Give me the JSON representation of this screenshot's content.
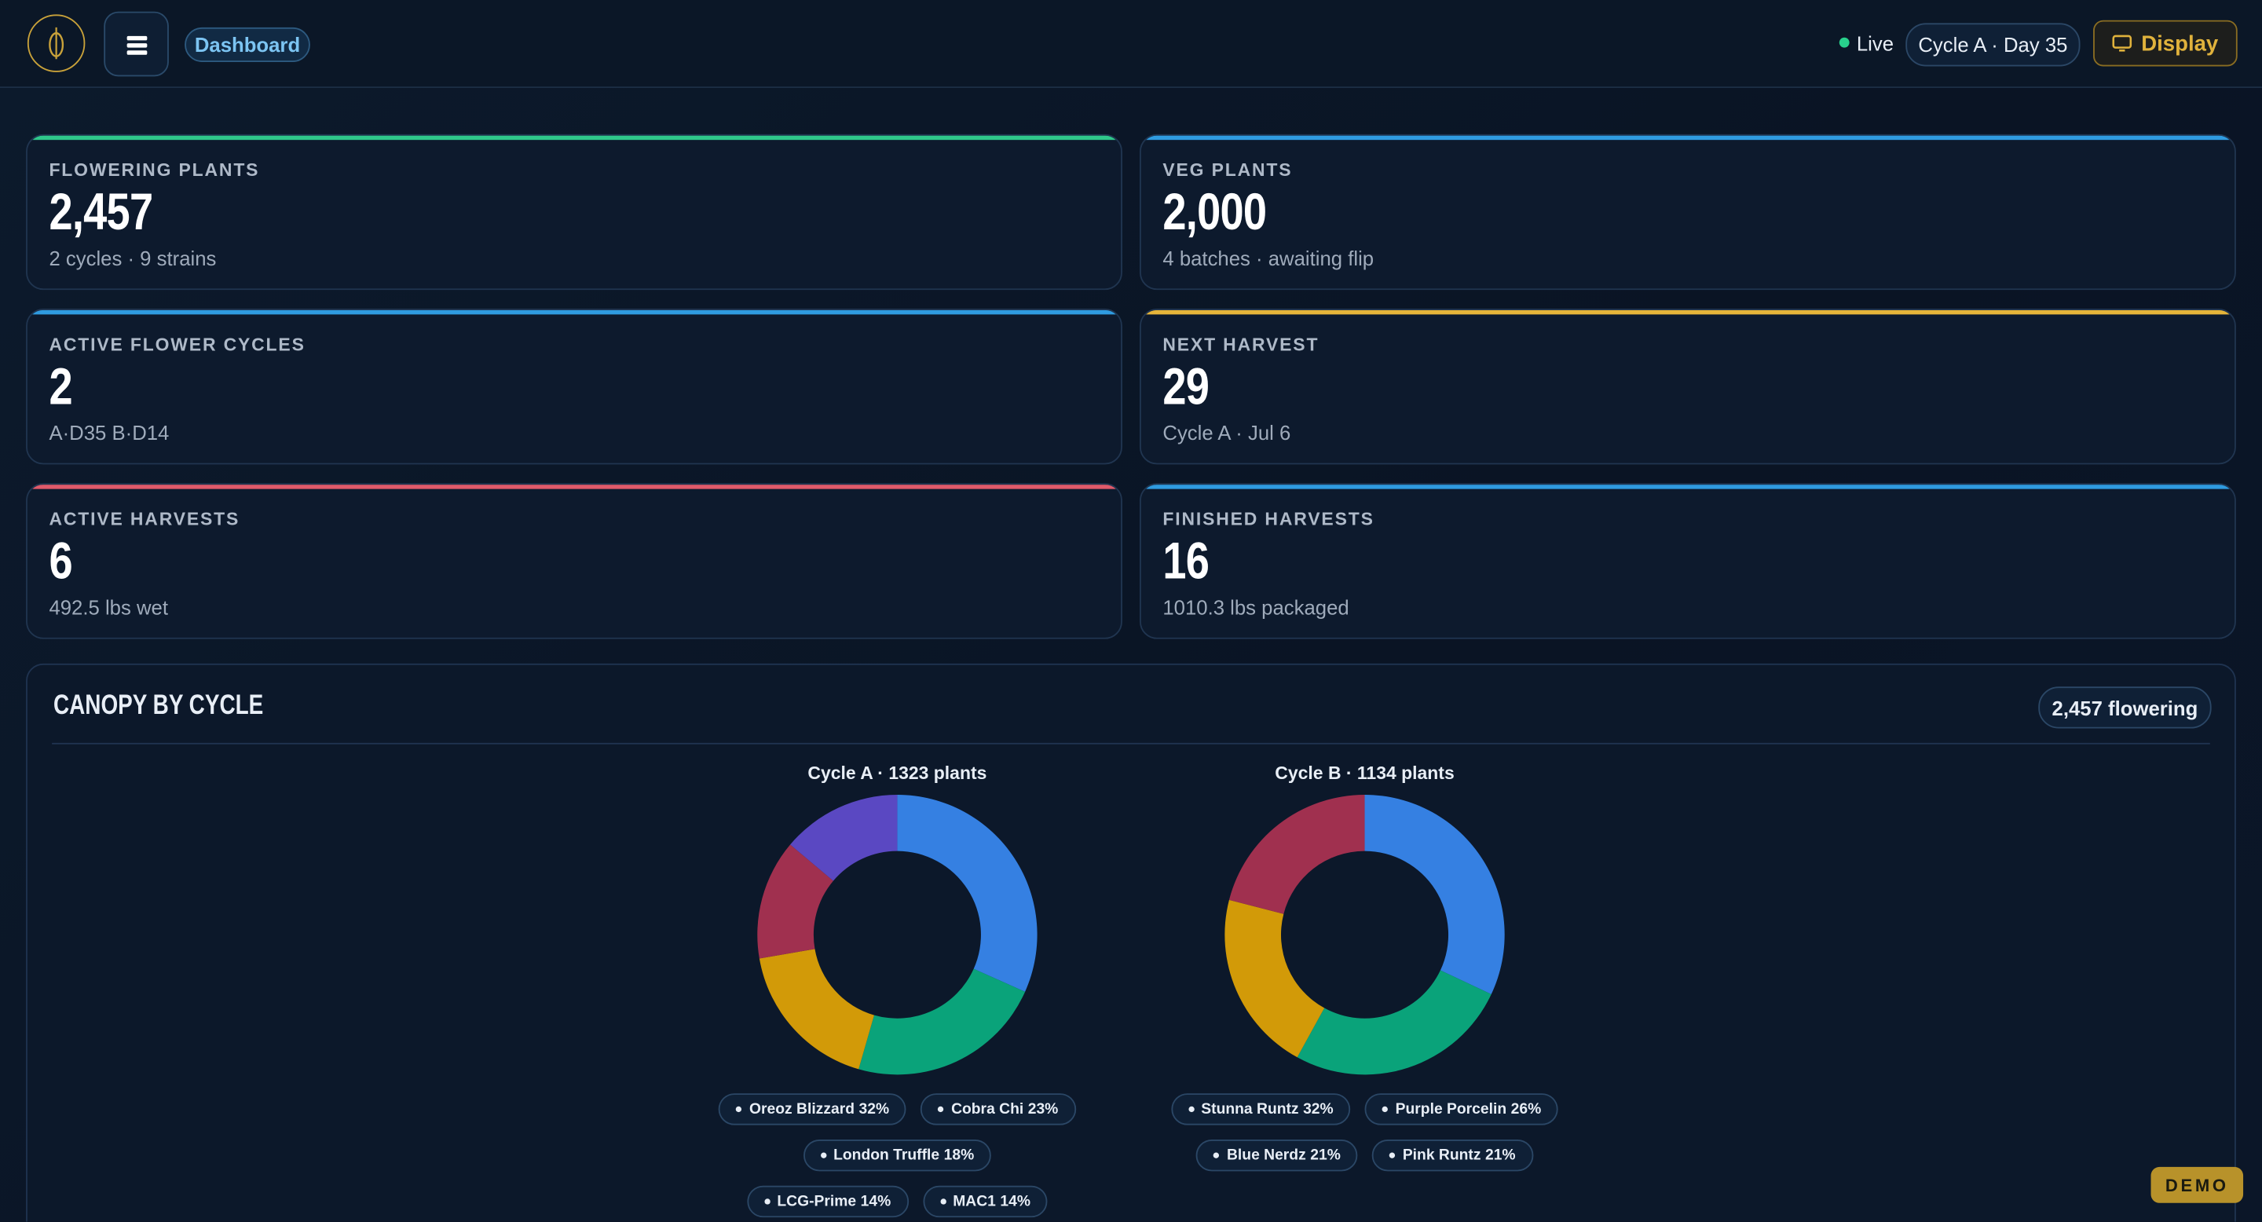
{
  "header": {
    "nav": "Dashboard",
    "status": "Live",
    "cycle": "Cycle A · Day 35",
    "button": "Display"
  },
  "cards": [
    {
      "label": "FLOWERING PLANTS",
      "value": "2,457",
      "sub": "2 cycles · 9 strains",
      "accent": "#2fc78a"
    },
    {
      "label": "VEG PLANTS",
      "value": "2,000",
      "sub": "4 batches · awaiting flip",
      "accent": "#2f9be0"
    },
    {
      "label": "ACTIVE FLOWER CYCLES",
      "value": "2",
      "sub": "A·D35 B·D14",
      "accent": "#2f9be0"
    },
    {
      "label": "NEXT HARVEST",
      "value": "29",
      "sub": "Cycle A · Jul 6",
      "accent": "#e6b53a"
    },
    {
      "label": "ACTIVE HARVESTS",
      "value": "6",
      "sub": "492.5 lbs wet",
      "accent": "#e05a6a"
    },
    {
      "label": "FINISHED HARVESTS",
      "value": "16",
      "sub": "1010.3 lbs packaged",
      "accent": "#2f9be0"
    }
  ],
  "panel": {
    "title": "CANOPY BY CYCLE",
    "badge": "2,457 flowering"
  },
  "chart_data": [
    {
      "type": "pie",
      "title": "Cycle A · 1323 plants",
      "categories": [
        "Oreoz Blizzard",
        "Cobra Chi",
        "London Truffle",
        "LCG-Prime",
        "MAC1"
      ],
      "values": [
        32,
        23,
        18,
        14,
        14
      ],
      "value_labels": [
        "32%",
        "23%",
        "18%",
        "14%",
        "14%"
      ],
      "colors": [
        "#3580e2",
        "#0aa37a",
        "#d29a08",
        "#a0304f",
        "#5a48c2"
      ]
    },
    {
      "type": "pie",
      "title": "Cycle B · 1134 plants",
      "categories": [
        "Stunna Runtz",
        "Purple Porcelin",
        "Blue Nerdz",
        "Pink Runtz"
      ],
      "values": [
        32,
        26,
        21,
        21
      ],
      "value_labels": [
        "32%",
        "26%",
        "21%",
        "21%"
      ],
      "colors": [
        "#3580e2",
        "#0aa37a",
        "#d29a08",
        "#a0304f"
      ]
    }
  ],
  "badge": "DEMO"
}
